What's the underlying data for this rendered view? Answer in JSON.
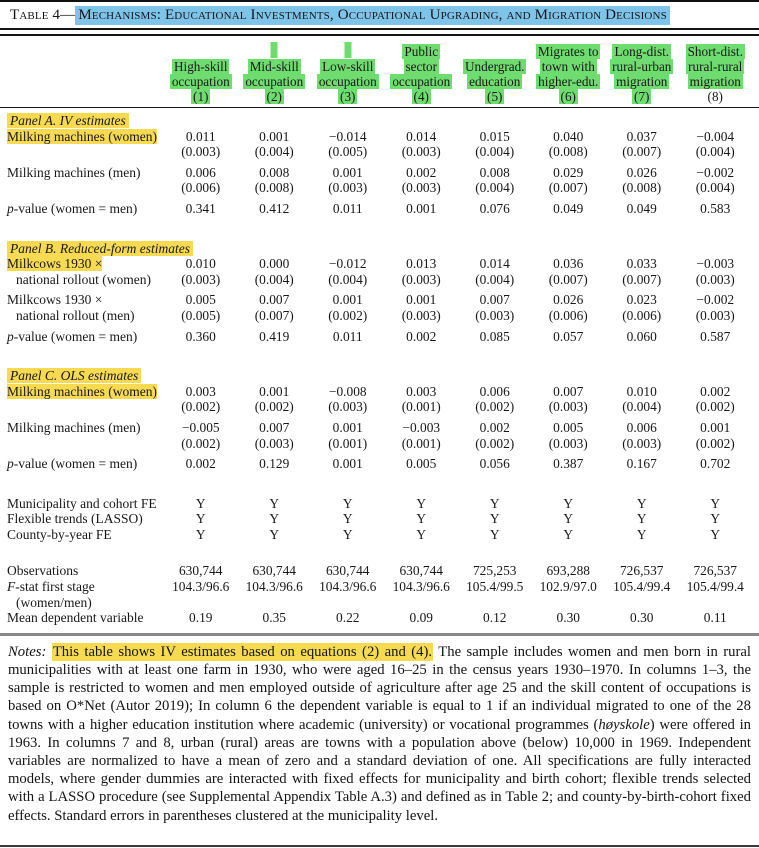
{
  "title": {
    "prefix": "Table 4—",
    "highlighted": "Mechanisms: Educational Investments, Occupational Upgrading, and Migration Decisions"
  },
  "colors": {
    "title_highlight": "#7ec4e9",
    "header_highlight": "#6edc6e",
    "row_highlight": "#f6db52"
  },
  "header": {
    "columns": [
      {
        "lines": [
          "High-skill",
          "occupation"
        ],
        "number": "(1)",
        "number_highlighted": true,
        "tick": false
      },
      {
        "lines": [
          "Mid-skill",
          "occupation"
        ],
        "number": "(2)",
        "number_highlighted": true,
        "tick": true
      },
      {
        "lines": [
          "Low-skill",
          "occupation"
        ],
        "number": "(3)",
        "number_highlighted": true,
        "tick": true
      },
      {
        "lines": [
          "Public",
          "sector",
          "occupation"
        ],
        "number": "(4)",
        "number_highlighted": true,
        "tick": false
      },
      {
        "lines": [
          "Undergrad.",
          "education"
        ],
        "number": "(5)",
        "number_highlighted": true,
        "tick": false
      },
      {
        "lines": [
          "Migrates to",
          "town with",
          "higher-edu."
        ],
        "number": "(6)",
        "number_highlighted": true,
        "tick": false
      },
      {
        "lines": [
          "Long-dist.",
          "rural-urban",
          "migration"
        ],
        "number": "(7)",
        "number_highlighted": true,
        "tick": false
      },
      {
        "lines": [
          "Short-dist.",
          "rural-rural",
          "migration"
        ],
        "number": "(8)",
        "number_highlighted": false,
        "tick": false
      }
    ]
  },
  "panels": [
    {
      "title": "Panel A. IV estimates",
      "rows": [
        {
          "type": "coef",
          "label_lines": [
            {
              "text": "Milking machines (women)",
              "highlight": true
            }
          ],
          "values": [
            "0.011",
            "0.001",
            "−0.014",
            "0.014",
            "0.015",
            "0.040",
            "0.037",
            "−0.004"
          ],
          "se": [
            "(0.003)",
            "(0.004)",
            "(0.005)",
            "(0.003)",
            "(0.004)",
            "(0.008)",
            "(0.007)",
            "(0.004)"
          ]
        },
        {
          "type": "coef",
          "label_lines": [
            {
              "text": "Milking machines (men)",
              "highlight": false
            }
          ],
          "values": [
            "0.006",
            "0.008",
            "0.001",
            "0.002",
            "0.008",
            "0.029",
            "0.026",
            "−0.002"
          ],
          "se": [
            "(0.006)",
            "(0.008)",
            "(0.003)",
            "(0.003)",
            "(0.004)",
            "(0.007)",
            "(0.008)",
            "(0.004)"
          ]
        },
        {
          "type": "pvalue",
          "label_italic": "p",
          "label": "-value (women = men)",
          "values": [
            "0.341",
            "0.412",
            "0.011",
            "0.001",
            "0.076",
            "0.049",
            "0.049",
            "0.583"
          ]
        }
      ]
    },
    {
      "title": "Panel B. Reduced-form estimates",
      "rows": [
        {
          "type": "coef",
          "label_lines": [
            {
              "text": "Milkcows 1930 ×",
              "highlight": true
            },
            {
              "text": "national rollout (women)",
              "highlight": false,
              "indent": true
            }
          ],
          "values": [
            "0.010",
            "0.000",
            "−0.012",
            "0.013",
            "0.014",
            "0.036",
            "0.033",
            "−0.003"
          ],
          "se": [
            "(0.003)",
            "(0.004)",
            "(0.004)",
            "(0.003)",
            "(0.004)",
            "(0.007)",
            "(0.007)",
            "(0.003)"
          ]
        },
        {
          "type": "coef",
          "label_lines": [
            {
              "text": "Milkcows 1930 ×",
              "highlight": false
            },
            {
              "text": "national rollout (men)",
              "highlight": false,
              "indent": true
            }
          ],
          "values": [
            "0.005",
            "0.007",
            "0.001",
            "0.001",
            "0.007",
            "0.026",
            "0.023",
            "−0.002"
          ],
          "se": [
            "(0.005)",
            "(0.007)",
            "(0.002)",
            "(0.003)",
            "(0.003)",
            "(0.006)",
            "(0.006)",
            "(0.003)"
          ]
        },
        {
          "type": "pvalue",
          "label_italic": "p",
          "label": "-value (women = men)",
          "values": [
            "0.360",
            "0.419",
            "0.011",
            "0.002",
            "0.085",
            "0.057",
            "0.060",
            "0.587"
          ]
        }
      ]
    },
    {
      "title": "Panel C. OLS estimates",
      "rows": [
        {
          "type": "coef",
          "label_lines": [
            {
              "text": "Milking machines (women)",
              "highlight": true
            }
          ],
          "values": [
            "0.003",
            "0.001",
            "−0.008",
            "0.003",
            "0.006",
            "0.007",
            "0.010",
            "0.002"
          ],
          "se": [
            "(0.002)",
            "(0.002)",
            "(0.003)",
            "(0.001)",
            "(0.002)",
            "(0.003)",
            "(0.004)",
            "(0.002)"
          ]
        },
        {
          "type": "coef",
          "label_lines": [
            {
              "text": "Milking machines (men)",
              "highlight": false
            }
          ],
          "values": [
            "−0.005",
            "0.007",
            "0.001",
            "−0.003",
            "0.002",
            "0.005",
            "0.006",
            "0.001"
          ],
          "se": [
            "(0.002)",
            "(0.003)",
            "(0.001)",
            "(0.001)",
            "(0.002)",
            "(0.003)",
            "(0.003)",
            "(0.002)"
          ]
        },
        {
          "type": "pvalue",
          "label_italic": "p",
          "label": "-value (women = men)",
          "values": [
            "0.002",
            "0.129",
            "0.001",
            "0.005",
            "0.056",
            "0.387",
            "0.167",
            "0.702"
          ]
        }
      ]
    }
  ],
  "fe_rows": [
    {
      "label": "Municipality and cohort FE",
      "values": [
        "Y",
        "Y",
        "Y",
        "Y",
        "Y",
        "Y",
        "Y",
        "Y"
      ]
    },
    {
      "label": "Flexible trends (LASSO)",
      "values": [
        "Y",
        "Y",
        "Y",
        "Y",
        "Y",
        "Y",
        "Y",
        "Y"
      ]
    },
    {
      "label": "County-by-year FE",
      "values": [
        "Y",
        "Y",
        "Y",
        "Y",
        "Y",
        "Y",
        "Y",
        "Y"
      ]
    }
  ],
  "stats_rows": [
    {
      "label": "Observations",
      "values": [
        "630,744",
        "630,744",
        "630,744",
        "630,744",
        "725,253",
        "693,288",
        "726,537",
        "726,537"
      ]
    },
    {
      "label_italic": "F",
      "label": "-stat first stage",
      "label2": "(women/men)",
      "values": [
        "104.3/96.6",
        "104.3/96.6",
        "104.3/96.6",
        "104.3/96.6",
        "105.4/99.5",
        "102.9/97.0",
        "105.4/99.4",
        "105.4/99.4"
      ]
    },
    {
      "label": "Mean dependent variable",
      "values": [
        "0.19",
        "0.35",
        "0.22",
        "0.09",
        "0.12",
        "0.30",
        "0.30",
        "0.11"
      ]
    }
  ],
  "notes_segments": [
    {
      "style": "italic",
      "text": "Notes:"
    },
    {
      "style": "plain",
      "text": " "
    },
    {
      "style": "highlight",
      "text": "This table shows IV estimates based on equations (2) and (4)."
    },
    {
      "style": "plain",
      "text": " The sample includes women and men born in rural municipalities with at least one farm in 1930, who were aged 16–25 in the census years 1930–1970. In columns 1–3, the sample is restricted to women and men employed outside of agriculture after age 25 and the skill content of occupations is based on O*Net (Autor 2019); In column 6 the dependent variable is equal to 1 if an individual migrated to one of the 28 towns with a higher education institution where academic (university) or vocational programmes ("
    },
    {
      "style": "italic",
      "text": "høyskole"
    },
    {
      "style": "plain",
      "text": ") were offered in 1963. In columns 7 and 8, urban (rural) areas are towns with a population above (below) 10,000 in 1969. Independent variables are normalized to have a mean of zero and a standard deviation of one. All specifications are fully interacted models, where gender dummies are interacted with fixed effects for municipality and birth cohort; flexible trends selected with a LASSO procedure (see Supplemental Appendix Table A.3) and defined as in Table 2; and county-by-birth-cohort fixed effects. Standard errors in parentheses clustered at the municipality level."
    }
  ]
}
